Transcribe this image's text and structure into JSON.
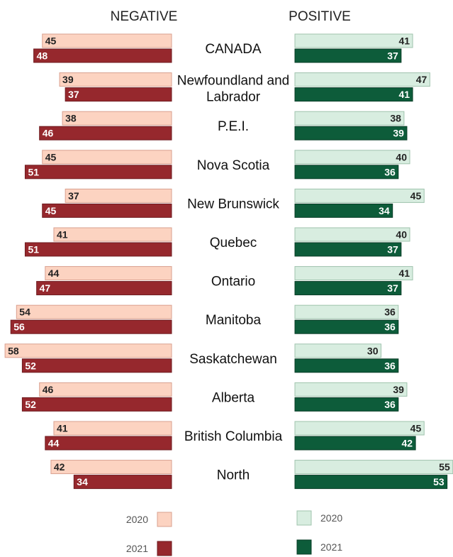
{
  "chart_data": {
    "type": "bar",
    "orientation": "horizontal-diverging",
    "panels": [
      {
        "key": "negative",
        "title": "NEGATIVE"
      },
      {
        "key": "positive",
        "title": "POSITIVE"
      }
    ],
    "categories": [
      {
        "label": "CANADA"
      },
      {
        "label": "Newfoundland and",
        "label2": "Labrador"
      },
      {
        "label": "P.E.I."
      },
      {
        "label": "Nova Scotia"
      },
      {
        "label": "New Brunswick"
      },
      {
        "label": "Quebec"
      },
      {
        "label": "Ontario"
      },
      {
        "label": "Manitoba"
      },
      {
        "label": "Saskatchewan"
      },
      {
        "label": "Alberta"
      },
      {
        "label": "British Columbia"
      },
      {
        "label": "North"
      }
    ],
    "series": [
      {
        "name": "2020",
        "panel": "negative",
        "color": "#fcd3c1",
        "border": "#d9a08f",
        "text_color": "#222222",
        "values": [
          45,
          39,
          38,
          45,
          37,
          41,
          44,
          54,
          58,
          46,
          41,
          42
        ]
      },
      {
        "name": "2021",
        "panel": "negative",
        "color": "#96282d",
        "border": "#6e1a1e",
        "text_color": "#ffffff",
        "values": [
          48,
          37,
          46,
          51,
          45,
          51,
          47,
          56,
          52,
          52,
          44,
          34
        ]
      },
      {
        "name": "2020",
        "panel": "positive",
        "color": "#d8ede0",
        "border": "#9fc3ad",
        "text_color": "#222222",
        "values": [
          41,
          47,
          38,
          40,
          45,
          40,
          41,
          36,
          30,
          39,
          45,
          55
        ]
      },
      {
        "name": "2021",
        "panel": "positive",
        "color": "#0d5c3a",
        "border": "#083d26",
        "text_color": "#ffffff",
        "values": [
          37,
          41,
          39,
          36,
          34,
          37,
          37,
          36,
          36,
          36,
          42,
          53
        ]
      }
    ],
    "legend": {
      "negative": [
        {
          "label": "2020",
          "color": "#fcd3c1"
        },
        {
          "label": "2021",
          "color": "#96282d"
        }
      ],
      "positive": [
        {
          "label": "2020",
          "color": "#d8ede0"
        },
        {
          "label": "2021",
          "color": "#0d5c3a"
        }
      ]
    },
    "grid": false
  }
}
